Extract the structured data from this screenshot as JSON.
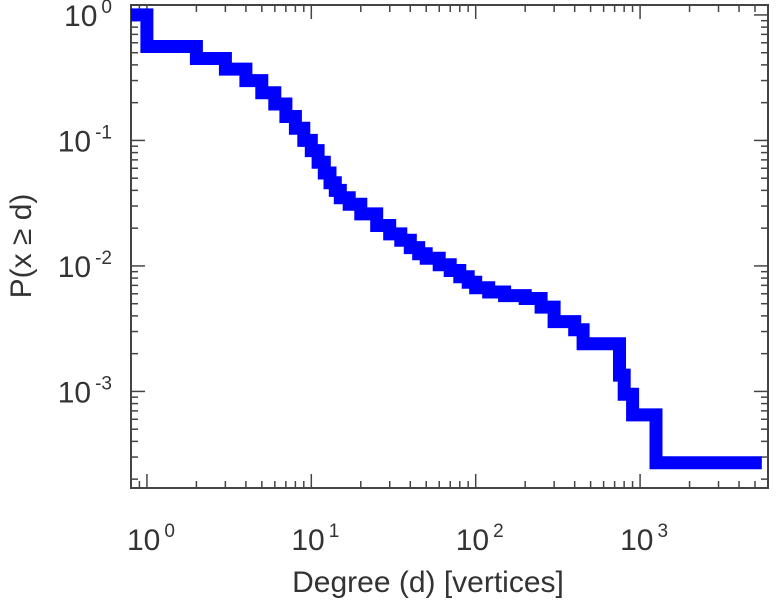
{
  "chart_data": {
    "type": "line",
    "title": "",
    "xlabel": "Degree (d) [vertices]",
    "ylabel": "P(x ≥ d)",
    "x_scale": "log",
    "y_scale": "log",
    "xlim": [
      0.8,
      6000
    ],
    "ylim": [
      0.00017,
      1.2
    ],
    "grid": false,
    "series_color": "#0000ff",
    "x_ticks": [
      {
        "base": "10",
        "exp": "0",
        "value": 1
      },
      {
        "base": "10",
        "exp": "1",
        "value": 10
      },
      {
        "base": "10",
        "exp": "2",
        "value": 100
      },
      {
        "base": "10",
        "exp": "3",
        "value": 1000
      }
    ],
    "y_ticks": [
      {
        "base": "10",
        "exp": "0",
        "value": 1
      },
      {
        "base": "10",
        "exp": "-1",
        "value": 0.1
      },
      {
        "base": "10",
        "exp": "-2",
        "value": 0.01
      },
      {
        "base": "10",
        "exp": "-3",
        "value": 0.001
      }
    ],
    "series": [
      {
        "x": [
          0.8,
          1,
          2,
          3,
          4,
          5,
          6,
          7,
          8,
          9,
          10,
          11,
          12,
          13,
          14,
          15,
          17,
          20,
          25,
          30,
          35,
          40,
          45,
          50,
          60,
          70,
          80,
          90,
          100,
          120,
          150,
          200,
          250,
          300,
          400,
          450,
          700,
          750,
          800,
          900,
          1250,
          5500
        ],
        "y": [
          1,
          0.56,
          0.45,
          0.37,
          0.3,
          0.24,
          0.195,
          0.155,
          0.125,
          0.1,
          0.083,
          0.067,
          0.055,
          0.046,
          0.04,
          0.035,
          0.031,
          0.026,
          0.021,
          0.018,
          0.016,
          0.014,
          0.0125,
          0.0115,
          0.0102,
          0.0092,
          0.0082,
          0.0074,
          0.0067,
          0.0062,
          0.0058,
          0.0055,
          0.0047,
          0.0036,
          0.0031,
          0.0024,
          0.0024,
          0.00135,
          0.00095,
          0.00065,
          0.00027,
          0.00027
        ]
      }
    ]
  }
}
